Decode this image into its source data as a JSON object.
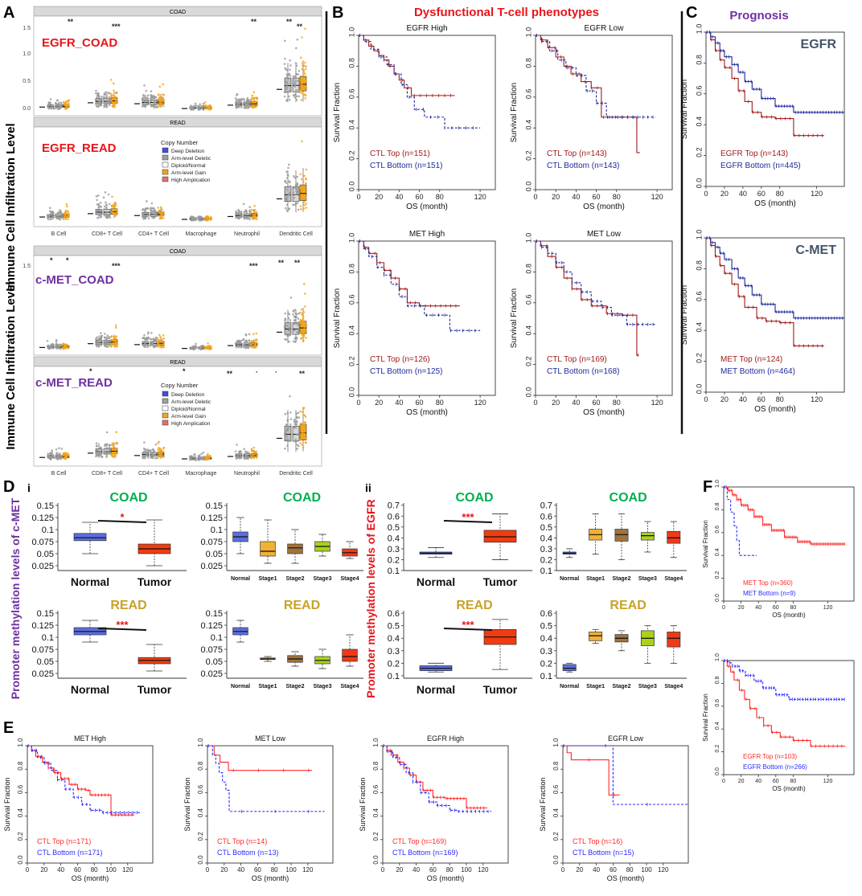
{
  "colors": {
    "red_title": "#e8151b",
    "purple": "#7030a0",
    "green": "#00b050",
    "gold": "#c9a227",
    "navy": "#1f2a9a",
    "dark_red": "#a01c1c",
    "slate": "#44546a",
    "km_red": "#ff2a2a",
    "km_blue": "#2b2bff",
    "box_blue": "#5b6ee1",
    "box_red": "#f03c10",
    "stage1": "#f1b134",
    "stage2": "#a0733c",
    "stage3": "#a8d21c",
    "stage4": "#ee3a18",
    "timer_orange": "#f2a51a"
  },
  "panel_letters": {
    "A": "A",
    "B": "B",
    "C": "C",
    "D": "D",
    "E": "E",
    "F": "F",
    "Di": "i",
    "Dii": "ii"
  },
  "panel_A": {
    "facets": [
      "COAD",
      "READ",
      "COAD",
      "READ"
    ],
    "labels": [
      "EGFR_COAD",
      "EGFR_READ",
      "c-MET_COAD",
      "c-MET_READ"
    ],
    "ylabel": "Immune Cell Infiltration Level",
    "yticks_top": [
      "1.5",
      "1.0",
      "0.5",
      "0.0"
    ],
    "yticks_bottom": [
      "1.5"
    ],
    "cells": [
      "B Cell",
      "CD8+ T Cell",
      "CD4+ T Cell",
      "Macrophage",
      "Neutrophil",
      "Dendritic Cell"
    ],
    "legend_title": "Copy Number",
    "legend_items_1": [
      "Deep Deletion",
      "Arm-level Deletic",
      "Diploid/Normal",
      "Arm-level Gain",
      "High Amplication"
    ],
    "legend_items_2": [
      "Deep Deletion",
      "Arm-level Deletic",
      "Diploid/Normal",
      "Arm-level Gain",
      "High Amplication"
    ],
    "legend_colors": [
      "#3f4fd8",
      "#a0a0a0",
      "#ffffff",
      "#f2a51a",
      "#e3706f"
    ],
    "stars_1": [
      "**",
      "***",
      "**",
      "**",
      "**"
    ],
    "stars_3": [
      "*",
      "*",
      "***",
      "***",
      "**",
      "**"
    ],
    "stars_4": [
      "*",
      "*",
      "**",
      "**"
    ],
    "dot_1": "·",
    "dot_2": "·"
  },
  "panel_B": {
    "title": "Dysfunctional T-cell phenotypes",
    "plots": [
      {
        "title": "EGFR High",
        "top": "CTL Top (n=151)",
        "bottom": "CTL Bottom (n=151)"
      },
      {
        "title": "EGFR Low",
        "top": "CTL Top (n=143)",
        "bottom": "CTL Bottom (n=143)"
      },
      {
        "title": "MET High",
        "top": "CTL Top (n=126)",
        "bottom": "CTL Bottom (n=125)"
      },
      {
        "title": "MET Low",
        "top": "CTL Top (n=169)",
        "bottom": "CTL Bottom (n=168)"
      }
    ],
    "ylabel": "Survival Fraction",
    "xlabel": "OS (month)",
    "yticks": [
      "1.0",
      "0.8",
      "0.6",
      "0.4",
      "0.2",
      "0.0"
    ],
    "xticks": [
      "0",
      "20",
      "40",
      "60",
      "80",
      "120"
    ]
  },
  "panel_C": {
    "title": "Prognosis",
    "plots": [
      {
        "gene": "EGFR",
        "top": "EGFR Top (n=143)",
        "bottom": "EGFR Bottom (n=445)"
      },
      {
        "gene": "C-MET",
        "top": "MET Top (n=124)",
        "bottom": "MET Bottom (n=464)"
      }
    ],
    "ylabel": "Survival Fraction",
    "xlabel": "OS (month)",
    "yticks": [
      "1.0",
      "0.8",
      "0.6",
      "0.4",
      "0.2",
      "0.0"
    ],
    "xticks": [
      "0",
      "20",
      "40",
      "60",
      "80",
      "120"
    ]
  },
  "panel_D": {
    "ylabel_i": "Promoter methylation levels of c-MET",
    "ylabel_ii": "Promoter methylation levels of EGFR",
    "plots": [
      {
        "title": "COAD",
        "yticks": [
          "0.15",
          "0.125",
          "0.1",
          "0.075",
          "0.05",
          "0.025"
        ],
        "cats": [
          "Normal",
          "Tumor"
        ],
        "sig": "*"
      },
      {
        "title": "COAD",
        "yticks": [
          "0.15",
          "0.125",
          "0.1",
          "0.075",
          "0.05",
          "0.025"
        ],
        "cats": [
          "Normal",
          "Stage1",
          "Stage2",
          "Stage3",
          "Stage4"
        ]
      },
      {
        "title": "COAD",
        "yticks": [
          "0.7",
          "0.6",
          "0.5",
          "0.4",
          "0.3",
          "0.2",
          "0.1"
        ],
        "cats": [
          "Normal",
          "Tumor"
        ],
        "sig": "***"
      },
      {
        "title": "COAD",
        "yticks": [
          "0.7",
          "0.6",
          "0.5",
          "0.4",
          "0.3",
          "0.2",
          "0.1"
        ],
        "cats": [
          "Normal",
          "Stage1",
          "Stage2",
          "Stage3",
          "Stage4"
        ]
      },
      {
        "title": "READ",
        "yticks": [
          "0.15",
          "0.125",
          "0.1",
          "0.075",
          "0.05",
          "0.025"
        ],
        "cats": [
          "Normal",
          "Tumor"
        ],
        "sig": "***"
      },
      {
        "title": "READ",
        "yticks": [
          "0.15",
          "0.125",
          "0.1",
          "0.075",
          "0.05",
          "0.025"
        ],
        "cats": [
          "Normal",
          "Stage1",
          "Stage2",
          "Stage3",
          "Stage4"
        ]
      },
      {
        "title": "READ",
        "yticks": [
          "0.6",
          "0.5",
          "0.4",
          "0.3",
          "0.2",
          "0.1"
        ],
        "cats": [
          "Normal",
          "Tumor"
        ],
        "sig": "***"
      },
      {
        "title": "READ",
        "yticks": [
          "0.6",
          "0.5",
          "0.4",
          "0.3",
          "0.2",
          "0.1"
        ],
        "cats": [
          "Normal",
          "Stage1",
          "Stage2",
          "Stage3",
          "Stage4"
        ]
      }
    ]
  },
  "panel_E": {
    "plots": [
      {
        "title": "MET High",
        "top": "CTL Top (n=171)",
        "bottom": "CTL Bottom (n=171)"
      },
      {
        "title": "MET Low",
        "top": "CTL Top (n=14)",
        "bottom": "CTL Bottom (n=13)"
      },
      {
        "title": "EGFR High",
        "top": "CTL Top (n=169)",
        "bottom": "CTL Bottom (n=169)"
      },
      {
        "title": "EGFR Low",
        "top": "CTL Top (n=16)",
        "bottom": "CTL Bottom (n=15)"
      }
    ],
    "ylabel": "Survival Fraction",
    "xlabel": "OS (month)",
    "yticks": [
      "1.0",
      "0.8",
      "0.6",
      "0.4",
      "0.2",
      "0.0"
    ],
    "xticks": [
      "0",
      "20",
      "40",
      "60",
      "80",
      "100",
      "120"
    ]
  },
  "panel_F": {
    "plots": [
      {
        "top": "MET Top (n=360)",
        "bottom": "MET Bottom (n=9)"
      },
      {
        "top": "EGFR Top (n=103)",
        "bottom": "EGFR Bottom (n=266)"
      }
    ],
    "ylabel": "Survival Fraction",
    "xlabel": "OS (month)",
    "yticks": [
      "1.0",
      "0.8",
      "0.6",
      "0.4",
      "0.2",
      "0.0"
    ],
    "xticks": [
      "0",
      "20",
      "40",
      "60",
      "80",
      "120"
    ]
  }
}
